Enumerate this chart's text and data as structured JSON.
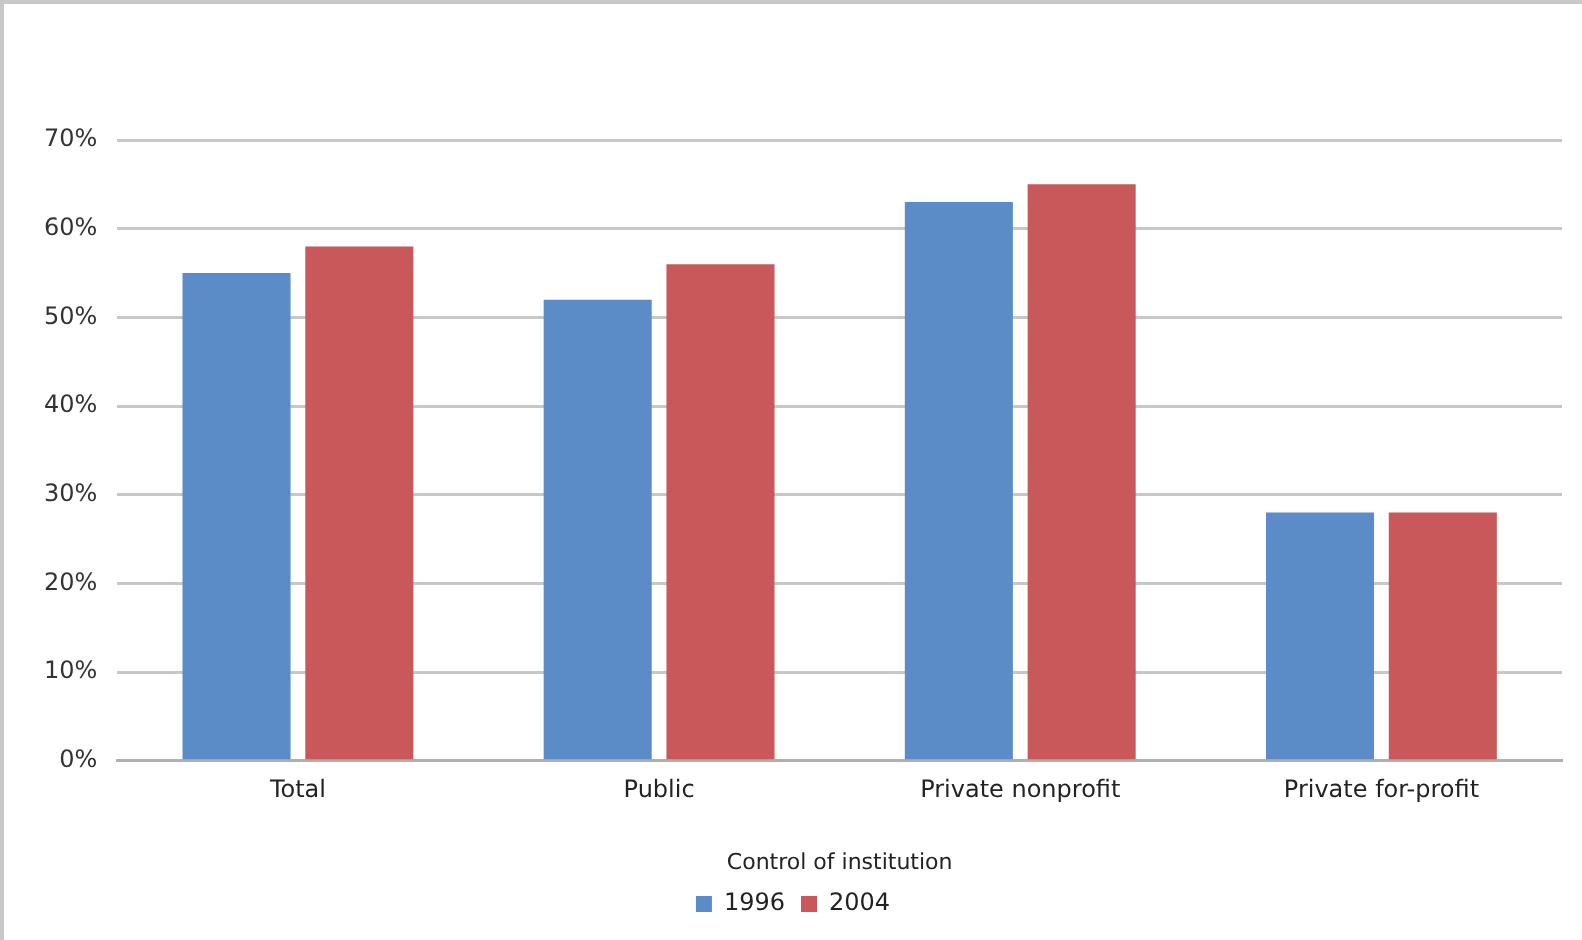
{
  "chart_data": {
    "type": "bar",
    "xlabel": "Control of institution",
    "categories": [
      "Total",
      "Public",
      "Private nonprofit",
      "Private for-profit"
    ],
    "series": [
      {
        "name": "1996",
        "color": "#5b8cc8",
        "values": [
          55,
          52,
          63,
          28
        ]
      },
      {
        "name": "2004",
        "color": "#c8585a",
        "values": [
          58,
          56,
          65,
          28
        ]
      }
    ],
    "ylim": [
      0,
      70
    ],
    "yticks": [
      {
        "value": 0,
        "label": "0%"
      },
      {
        "value": 10,
        "label": "10%"
      },
      {
        "value": 20,
        "label": "20%"
      },
      {
        "value": 30,
        "label": "30%"
      },
      {
        "value": 40,
        "label": "40%"
      },
      {
        "value": 50,
        "label": "50%"
      },
      {
        "value": 60,
        "label": "60%"
      },
      {
        "value": 70,
        "label": "70%"
      }
    ],
    "grid": "y",
    "legend": "bottom"
  }
}
